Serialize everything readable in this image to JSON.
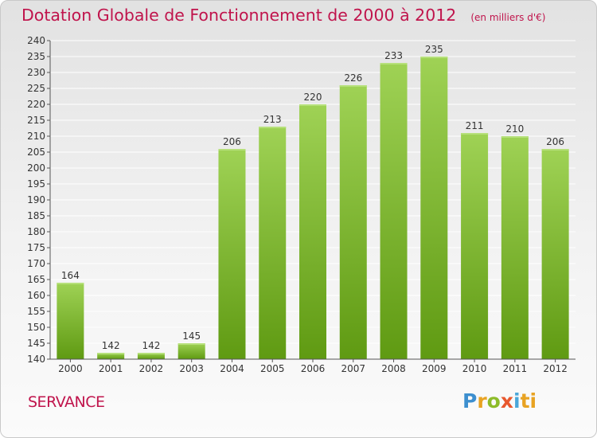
{
  "header": {
    "title": "Dotation Globale de Fonctionnement de 2000 à 2012",
    "unit": "(en milliers d'€)"
  },
  "footer": {
    "commune": "SERVANCE",
    "logo": "Proxiti",
    "logo_letters": [
      "P",
      "r",
      "o",
      "x",
      "i",
      "ti"
    ]
  },
  "colors": {
    "title": "#c0144c",
    "bar_top": "#9fd255",
    "bar_bottom": "#5f9a12",
    "axis": "#555555",
    "grid": "#ffffff"
  },
  "chart_data": {
    "type": "bar",
    "title": "Dotation Globale de Fonctionnement de 2000 à 2012",
    "subtitle": "(en milliers d'€)",
    "xlabel": "",
    "ylabel": "",
    "categories": [
      "2000",
      "2001",
      "2002",
      "2003",
      "2004",
      "2005",
      "2006",
      "2007",
      "2008",
      "2009",
      "2010",
      "2011",
      "2012"
    ],
    "values": [
      164,
      142,
      142,
      145,
      206,
      213,
      220,
      226,
      233,
      235,
      211,
      210,
      206
    ],
    "ylim": [
      140,
      240
    ],
    "ytick_step": 5,
    "grid": true,
    "data_labels": true
  }
}
